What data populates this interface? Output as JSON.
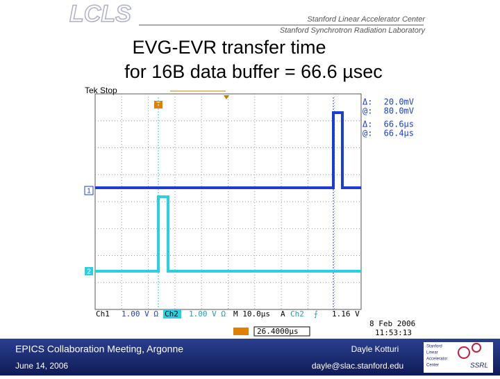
{
  "header": {
    "logo": "LCLS",
    "org1": "Stanford Linear Accelerator Center",
    "org2": "Stanford Synchrotron Radiation Laboratory"
  },
  "title": [
    "EVG-EVR transfer time",
    "for 16B data buffer = 66.6 µsec"
  ],
  "scope": {
    "status": "Tek Stop",
    "trigger_marker": "T",
    "ch1_marker": "1",
    "ch2_marker": "2",
    "readouts": [
      [
        "Δ:",
        "20.0mV"
      ],
      [
        "@:",
        "80.0mV"
      ],
      [
        "Δ:",
        "66.6µs"
      ],
      [
        "@:",
        "66.4µs"
      ]
    ],
    "bottom": [
      "Ch1",
      "1.00 V Ω",
      "Ch2",
      "1.00 V Ω",
      "M 10.0µs",
      "A",
      "Ch2",
      "⨍",
      "1.16 V"
    ],
    "date": "8 Feb 2006",
    "time": "11:53:13",
    "trigger_pos": "26.4000µs"
  },
  "footer": {
    "meeting": "EPICS Collaboration Meeting, Argonne",
    "date": "June 14, 2006",
    "author": "Dayle Kotturi",
    "email": "dayle@slac.stanford.edu",
    "logo": [
      "Stanford",
      "Linear",
      "Accelerator",
      "Center"
    ],
    "ssrl": "SSRL"
  }
}
